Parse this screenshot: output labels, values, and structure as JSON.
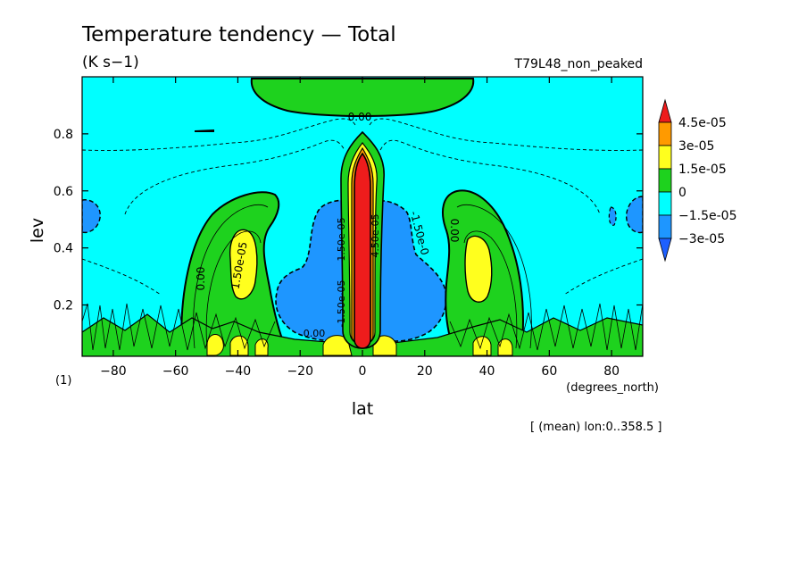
{
  "chart_data": {
    "type": "heatmap",
    "title": "Temperature tendency — Total",
    "subtitle": "(K s−1)",
    "run_label": "T79L48_non_peaked",
    "xlabel": "lat",
    "xunits": "(degrees_north)",
    "ylabel": "lev",
    "yunits": "(1)",
    "footer": "[ (mean) lon:0..358.5 ]",
    "xlim": [
      -90,
      90
    ],
    "ylim": [
      1.0,
      0.02
    ],
    "x_ticks": [
      -80,
      -60,
      -40,
      -20,
      0,
      20,
      40,
      60,
      80
    ],
    "x_tick_labels": [
      "−80",
      "−60",
      "−40",
      "−20",
      "0",
      "20",
      "40",
      "60",
      "80"
    ],
    "y_ticks": [
      0.2,
      0.4,
      0.6,
      0.8
    ],
    "y_tick_labels": [
      "0.2",
      "0.4",
      "0.6",
      "0.8"
    ],
    "levels": [
      -3e-05,
      -1.5e-05,
      0,
      1.5e-05,
      3e-05,
      4.5e-05
    ],
    "colorbar_labels": [
      "4.5e-05",
      "3e-05",
      "1.5e-05",
      "0",
      "−1.5e-05",
      "−3e-05"
    ],
    "colorbar_colors": [
      "#ee1c1c",
      "#ff9a00",
      "#ffff1e",
      "#1ed21e",
      "#00ffff",
      "#1e96ff",
      "#1e60ff"
    ],
    "contour_labels": [
      "0.00",
      "0.00",
      "0.00",
      "0.00",
      "1.50e-05",
      "-1.50e-0",
      "1.50e-05",
      "-1.50e-05",
      "4.50e-05"
    ],
    "colors": {
      "red": "#ee1c1c",
      "orange": "#ff9a00",
      "yellow": "#ffff1e",
      "green": "#1ed21e",
      "cyan": "#00ffff",
      "blue": "#1e96ff"
    }
  }
}
